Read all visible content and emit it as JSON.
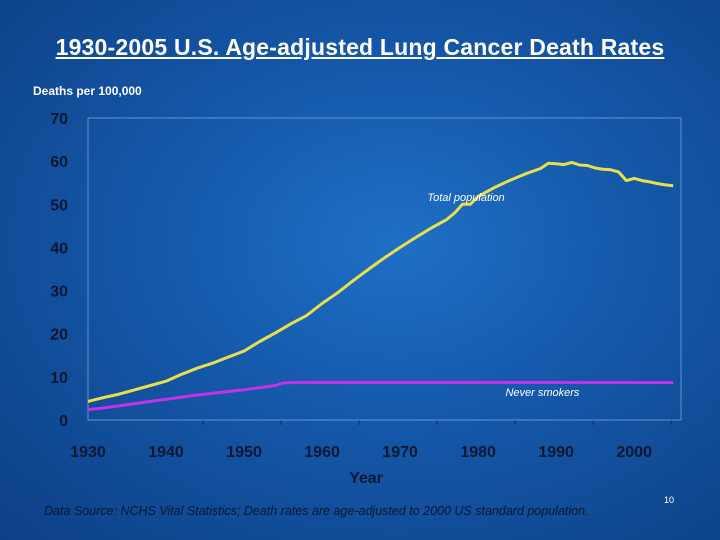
{
  "slide": {
    "title": "1930-2005 U.S. Age-adjusted Lung Cancer Death Rates",
    "footnote": "Data Source: NCHS Vital Statistics; Death rates are age-adjusted to 2000 US standard population.",
    "slide_number": "10"
  },
  "chart_data": {
    "type": "line",
    "title": "1930-2005 U.S. Age-adjusted Lung Cancer Death Rates",
    "xlabel": "Year",
    "ylabel": "Deaths per 100,000",
    "xlim": [
      1930,
      2006
    ],
    "ylim": [
      0,
      70
    ],
    "x_ticks": [
      1930,
      1940,
      1950,
      1960,
      1970,
      1980,
      1990,
      2000
    ],
    "y_ticks": [
      0,
      10,
      20,
      30,
      40,
      50,
      60,
      70
    ],
    "grid": false,
    "series": [
      {
        "name": "Total population",
        "color": "#e8e04a",
        "points": [
          [
            1930,
            4.3
          ],
          [
            1932,
            5.2
          ],
          [
            1934,
            6.0
          ],
          [
            1936,
            7.0
          ],
          [
            1938,
            8.0
          ],
          [
            1940,
            9.0
          ],
          [
            1942,
            10.6
          ],
          [
            1944,
            12.0
          ],
          [
            1946,
            13.2
          ],
          [
            1948,
            14.6
          ],
          [
            1950,
            16.0
          ],
          [
            1952,
            18.2
          ],
          [
            1954,
            20.2
          ],
          [
            1956,
            22.3
          ],
          [
            1958,
            24.2
          ],
          [
            1960,
            27.0
          ],
          [
            1962,
            29.5
          ],
          [
            1964,
            32.3
          ],
          [
            1966,
            35.0
          ],
          [
            1968,
            37.6
          ],
          [
            1970,
            40.0
          ],
          [
            1972,
            42.3
          ],
          [
            1974,
            44.5
          ],
          [
            1976,
            46.5
          ],
          [
            1977,
            48.0
          ],
          [
            1978,
            50.0
          ],
          [
            1979,
            50.0
          ],
          [
            1980,
            51.8
          ],
          [
            1982,
            53.8
          ],
          [
            1984,
            55.5
          ],
          [
            1986,
            57.0
          ],
          [
            1988,
            58.3
          ],
          [
            1989,
            59.5
          ],
          [
            1990,
            59.4
          ],
          [
            1991,
            59.2
          ],
          [
            1992,
            59.7
          ],
          [
            1993,
            59.1
          ],
          [
            1994,
            59.0
          ],
          [
            1995,
            58.4
          ],
          [
            1996,
            58.1
          ],
          [
            1997,
            58.0
          ],
          [
            1998,
            57.5
          ],
          [
            1999,
            55.5
          ],
          [
            2000,
            56.0
          ],
          [
            2001,
            55.5
          ],
          [
            2002,
            55.2
          ],
          [
            2003,
            54.8
          ],
          [
            2004,
            54.5
          ],
          [
            2005,
            54.3
          ]
        ],
        "label": "Total population"
      },
      {
        "name": "Never smokers",
        "color": "#c531e8",
        "points": [
          [
            1930,
            2.4
          ],
          [
            1932,
            2.8
          ],
          [
            1934,
            3.3
          ],
          [
            1936,
            3.8
          ],
          [
            1938,
            4.3
          ],
          [
            1940,
            4.8
          ],
          [
            1942,
            5.3
          ],
          [
            1944,
            5.8
          ],
          [
            1946,
            6.2
          ],
          [
            1948,
            6.6
          ],
          [
            1950,
            7.0
          ],
          [
            1952,
            7.5
          ],
          [
            1954,
            8.0
          ],
          [
            1955,
            8.6
          ],
          [
            1957,
            8.7
          ],
          [
            1959,
            8.7
          ],
          [
            1960,
            8.7
          ],
          [
            1970,
            8.7
          ],
          [
            1980,
            8.7
          ],
          [
            1990,
            8.7
          ],
          [
            2000,
            8.7
          ],
          [
            2005,
            8.7
          ]
        ],
        "label": "Never smokers"
      }
    ]
  }
}
